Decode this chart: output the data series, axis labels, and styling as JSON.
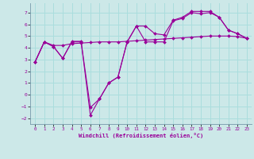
{
  "xlabel": "Windchill (Refroidissement éolien,°C)",
  "background_color": "#cce8e8",
  "grid_color": "#aadddd",
  "line_color": "#990099",
  "xlim": [
    -0.5,
    23.5
  ],
  "ylim": [
    -2.5,
    7.8
  ],
  "yticks": [
    -2,
    -1,
    0,
    1,
    2,
    3,
    4,
    5,
    6,
    7
  ],
  "xticks": [
    0,
    1,
    2,
    3,
    4,
    5,
    6,
    7,
    8,
    9,
    10,
    11,
    12,
    13,
    14,
    15,
    16,
    17,
    18,
    19,
    20,
    21,
    22,
    23
  ],
  "line1_x": [
    0,
    1,
    2,
    3,
    4,
    5,
    6,
    7,
    8,
    9,
    10,
    11,
    12,
    13,
    14,
    15,
    16,
    17,
    18,
    19,
    20,
    21,
    22,
    23
  ],
  "line1_y": [
    2.8,
    4.5,
    4.1,
    3.1,
    4.5,
    4.5,
    -1.1,
    -0.35,
    1.0,
    1.5,
    4.5,
    5.85,
    4.5,
    4.5,
    4.5,
    6.3,
    6.5,
    7.0,
    6.9,
    7.0,
    6.6,
    5.5,
    5.2,
    4.8
  ],
  "line2_x": [
    0,
    1,
    2,
    3,
    4,
    5,
    6,
    7,
    8,
    9,
    10,
    11,
    12,
    13,
    14,
    15,
    16,
    17,
    18,
    19,
    20,
    21,
    22,
    23
  ],
  "line2_y": [
    2.8,
    4.5,
    4.1,
    3.1,
    4.55,
    4.55,
    -1.75,
    -0.35,
    1.0,
    1.5,
    4.5,
    5.85,
    5.85,
    5.2,
    5.1,
    6.35,
    6.6,
    7.1,
    7.1,
    7.1,
    6.6,
    5.5,
    5.2,
    4.8
  ],
  "line3_x": [
    0,
    1,
    2,
    3,
    4,
    5,
    6,
    7,
    8,
    9,
    10,
    11,
    12,
    13,
    14,
    15,
    16,
    17,
    18,
    19,
    20,
    21,
    22,
    23
  ],
  "line3_y": [
    2.8,
    4.5,
    4.2,
    4.2,
    4.35,
    4.4,
    4.45,
    4.5,
    4.5,
    4.5,
    4.55,
    4.6,
    4.65,
    4.7,
    4.75,
    4.8,
    4.85,
    4.9,
    4.95,
    5.0,
    5.0,
    5.0,
    4.95,
    4.8
  ]
}
